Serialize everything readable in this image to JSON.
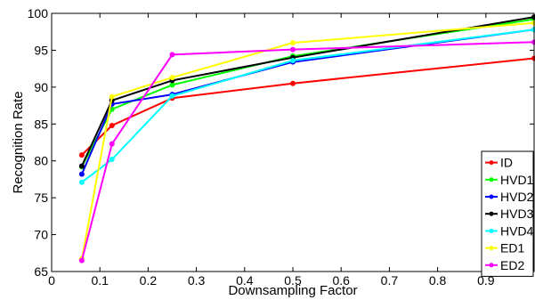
{
  "chart_data": {
    "type": "line",
    "xlabel": "Downsampling Factor",
    "ylabel": "Recognition Rate",
    "xlim": [
      0,
      1
    ],
    "ylim": [
      65,
      100
    ],
    "xticks": [
      0,
      0.1,
      0.2,
      0.3,
      0.4,
      0.5,
      0.6,
      0.7,
      0.8,
      0.9
    ],
    "yticks": [
      65,
      70,
      75,
      80,
      85,
      90,
      95,
      100
    ],
    "legend_position": "bottom-right",
    "series": [
      {
        "name": "ID",
        "color": "#ff0000",
        "x": [
          0.0625,
          0.125,
          0.25,
          0.5,
          1.0
        ],
        "y": [
          80.8,
          84.8,
          88.5,
          90.5,
          93.9
        ]
      },
      {
        "name": "HVD1",
        "color": "#00ff00",
        "x": [
          0.0625,
          0.125,
          0.25,
          0.5,
          1.0
        ],
        "y": [
          79.2,
          87.0,
          90.3,
          94.2,
          99.2
        ]
      },
      {
        "name": "HVD2",
        "color": "#0000ff",
        "x": [
          0.0625,
          0.125,
          0.25,
          0.5,
          1.0
        ],
        "y": [
          78.2,
          87.7,
          89.0,
          93.4,
          97.8
        ]
      },
      {
        "name": "HVD3",
        "color": "#000000",
        "x": [
          0.0625,
          0.125,
          0.25,
          0.5,
          1.0
        ],
        "y": [
          79.3,
          88.2,
          90.9,
          94.0,
          99.5
        ]
      },
      {
        "name": "HVD4",
        "color": "#00ffff",
        "x": [
          0.0625,
          0.125,
          0.25,
          0.5,
          1.0
        ],
        "y": [
          77.1,
          80.2,
          88.8,
          93.6,
          97.8
        ]
      },
      {
        "name": "ED1",
        "color": "#ffff00",
        "x": [
          0.0625,
          0.125,
          0.25,
          0.5,
          1.0
        ],
        "y": [
          66.7,
          88.7,
          91.3,
          96.0,
          98.7
        ]
      },
      {
        "name": "ED2",
        "color": "#ff00ff",
        "x": [
          0.0625,
          0.125,
          0.25,
          0.5,
          1.0
        ],
        "y": [
          66.5,
          82.3,
          94.4,
          95.1,
          96.1
        ]
      }
    ]
  }
}
